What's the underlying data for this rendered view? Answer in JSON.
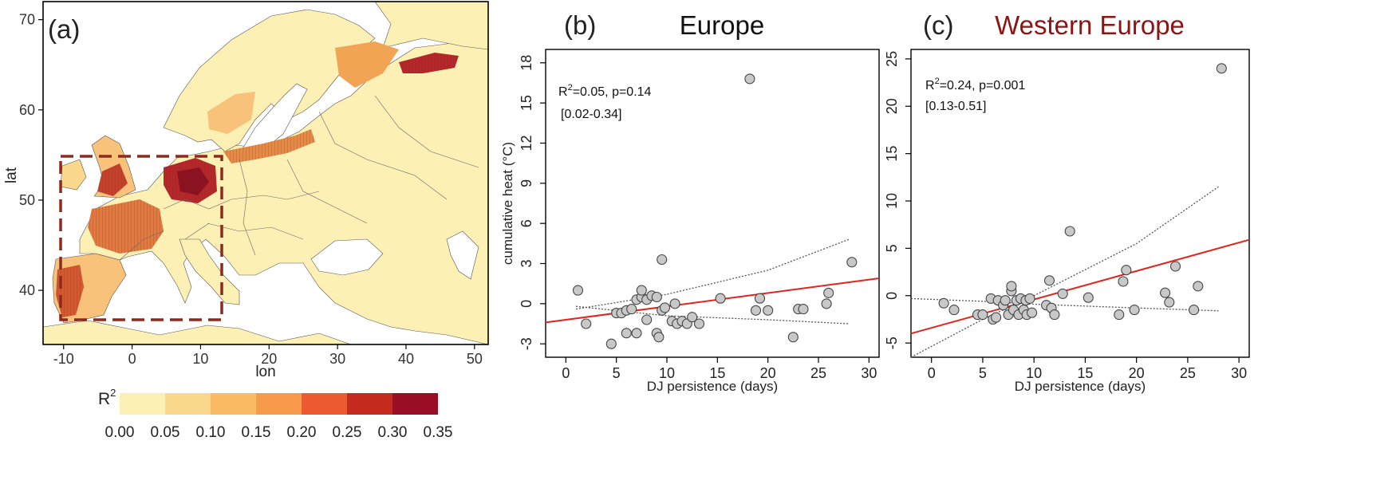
{
  "chart_data": [
    {
      "panel": "(a)",
      "type": "heatmap",
      "subtype": "map",
      "xlabel": "lon",
      "ylabel": "lat",
      "x_ticks": [
        "-10",
        "0",
        "10",
        "20",
        "30",
        "40",
        "50"
      ],
      "y_ticks": [
        "40",
        "50",
        "60",
        "70"
      ],
      "xlim": [
        -13,
        52
      ],
      "ylim": [
        34,
        72
      ],
      "region_box_lon": [
        -9,
        14
      ],
      "region_box_lat": [
        37,
        55
      ],
      "colorbar": {
        "label": "R",
        "label_sup": "2",
        "ticks": [
          "0.00",
          "0.05",
          "0.10",
          "0.15",
          "0.20",
          "0.25",
          "0.30",
          "0.35"
        ],
        "colors": [
          "#fdf0b4",
          "#fcd88d",
          "#fbbb64",
          "#f79a4c",
          "#ec5a32",
          "#c42a1e",
          "#9a0e23"
        ]
      }
    },
    {
      "panel": "(b)",
      "type": "scatter",
      "title": "Europe",
      "title_color": "#111111",
      "xlabel": "DJ persistence (days)",
      "ylabel": "cumulative heat  (°C)",
      "xlim": [
        -2,
        31
      ],
      "ylim": [
        -4,
        19
      ],
      "x_ticks": [
        0,
        5,
        10,
        15,
        20,
        25,
        30
      ],
      "y_ticks": [
        -3,
        0,
        3,
        6,
        9,
        12,
        15,
        18
      ],
      "annotation_r": "R",
      "annotation_sup": "2",
      "annotation_rest": "=0.05, p=0.14",
      "annotation_ci": "[0.02-0.34]",
      "points": [
        [
          1.2,
          1.0
        ],
        [
          2.0,
          -1.5
        ],
        [
          4.5,
          -3.0
        ],
        [
          5.0,
          -0.7
        ],
        [
          5.5,
          -0.7
        ],
        [
          6.0,
          -0.5
        ],
        [
          6.0,
          -2.2
        ],
        [
          6.5,
          -0.4
        ],
        [
          7.0,
          0.3
        ],
        [
          7.0,
          -2.2
        ],
        [
          7.5,
          0.5
        ],
        [
          7.5,
          1.0
        ],
        [
          8.0,
          0.3
        ],
        [
          8.0,
          -1.2
        ],
        [
          8.5,
          0.6
        ],
        [
          9.0,
          0.5
        ],
        [
          9.0,
          -2.2
        ],
        [
          9.2,
          -2.5
        ],
        [
          9.5,
          -0.5
        ],
        [
          9.5,
          3.3
        ],
        [
          9.8,
          -0.3
        ],
        [
          10.5,
          -1.3
        ],
        [
          10.8,
          0.0
        ],
        [
          11.0,
          -1.5
        ],
        [
          11.5,
          -1.3
        ],
        [
          12.0,
          -1.5
        ],
        [
          12.5,
          -1.0
        ],
        [
          13.2,
          -1.5
        ],
        [
          15.3,
          0.4
        ],
        [
          18.2,
          16.8
        ],
        [
          18.8,
          -0.5
        ],
        [
          19.2,
          0.4
        ],
        [
          20.0,
          -0.5
        ],
        [
          22.5,
          -2.5
        ],
        [
          23.0,
          -0.4
        ],
        [
          23.5,
          -0.4
        ],
        [
          25.8,
          0.0
        ],
        [
          26.0,
          0.8
        ],
        [
          28.3,
          3.1
        ]
      ],
      "fit_line": [
        [
          -2,
          -1.4
        ],
        [
          31,
          1.9
        ]
      ],
      "ci_upper": [
        [
          1,
          -0.4
        ],
        [
          10,
          0.7
        ],
        [
          20,
          2.5
        ],
        [
          28,
          4.8
        ]
      ],
      "ci_lower": [
        [
          1,
          -0.2
        ],
        [
          10,
          -0.9
        ],
        [
          20,
          -1.2
        ],
        [
          28,
          -1.5
        ]
      ]
    },
    {
      "panel": "(c)",
      "type": "scatter",
      "title": "Western Europe",
      "title_color": "#8b1414",
      "xlabel": "DJ persistence (days)",
      "ylabel": "",
      "xlim": [
        -2,
        31
      ],
      "ylim": [
        -6.5,
        26
      ],
      "x_ticks": [
        0,
        5,
        10,
        15,
        20,
        25,
        30
      ],
      "y_ticks": [
        -5,
        0,
        5,
        10,
        15,
        20,
        25
      ],
      "annotation_r": "R",
      "annotation_sup": "2",
      "annotation_rest": "=0.24, p=0.001",
      "annotation_ci": "[0.13-0.51]",
      "points": [
        [
          1.2,
          -0.8
        ],
        [
          2.2,
          -1.5
        ],
        [
          4.5,
          -2.0
        ],
        [
          5.0,
          -2.0
        ],
        [
          5.8,
          -0.3
        ],
        [
          6.0,
          -2.5
        ],
        [
          6.3,
          -2.3
        ],
        [
          6.5,
          -0.5
        ],
        [
          7.0,
          -1.0
        ],
        [
          7.2,
          -0.5
        ],
        [
          7.5,
          -2.0
        ],
        [
          7.8,
          0.5
        ],
        [
          7.8,
          1.0
        ],
        [
          8.0,
          -1.5
        ],
        [
          8.3,
          -0.5
        ],
        [
          8.5,
          -2.0
        ],
        [
          8.7,
          -0.3
        ],
        [
          9.0,
          -1.5
        ],
        [
          9.2,
          -0.5
        ],
        [
          9.3,
          -2.0
        ],
        [
          9.6,
          -0.3
        ],
        [
          9.8,
          -1.8
        ],
        [
          11.2,
          -1.0
        ],
        [
          11.5,
          1.6
        ],
        [
          11.7,
          -1.3
        ],
        [
          12.0,
          -2.0
        ],
        [
          12.8,
          0.2
        ],
        [
          13.5,
          6.8
        ],
        [
          15.3,
          -0.2
        ],
        [
          18.3,
          -2.0
        ],
        [
          18.7,
          1.5
        ],
        [
          19.0,
          2.7
        ],
        [
          19.8,
          -1.5
        ],
        [
          22.8,
          0.3
        ],
        [
          23.2,
          -0.7
        ],
        [
          23.8,
          3.1
        ],
        [
          25.6,
          -1.5
        ],
        [
          26.0,
          1.0
        ],
        [
          28.3,
          24.0
        ]
      ],
      "fit_line": [
        [
          -2,
          -4.0
        ],
        [
          31,
          5.9
        ]
      ],
      "ci_upper": [
        [
          -2,
          -6.5
        ],
        [
          5,
          -2.5
        ],
        [
          10,
          0.0
        ],
        [
          20,
          5.5
        ],
        [
          28,
          11.5
        ]
      ],
      "ci_lower": [
        [
          -2,
          -0.3
        ],
        [
          5,
          -0.6
        ],
        [
          10,
          -0.9
        ],
        [
          20,
          -1.3
        ],
        [
          28,
          -1.6
        ]
      ]
    }
  ]
}
